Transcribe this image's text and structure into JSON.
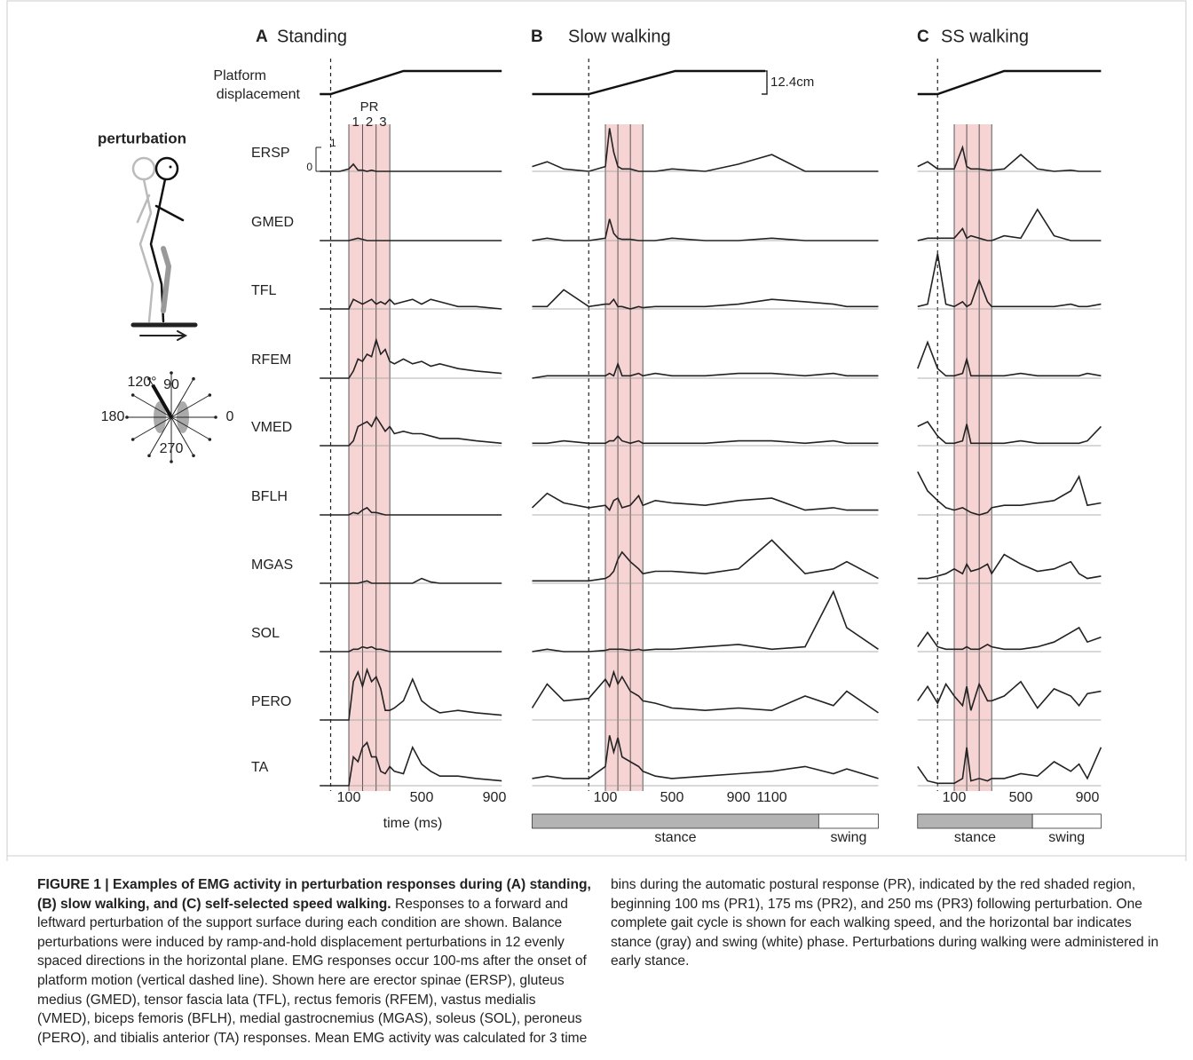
{
  "figure": {
    "muscles": [
      "ERSP",
      "GMED",
      "TFL",
      "RFEM",
      "VMED",
      "BFLH",
      "MGAS",
      "SOL",
      "PERO",
      "TA"
    ],
    "platform_label": [
      "Platform",
      "displacement"
    ],
    "displacement_scale": "12.4cm",
    "emg_scale_ticks": [
      0,
      1
    ],
    "pr_label": "PR",
    "pr_bins": [
      "1",
      "2",
      "3"
    ],
    "pr_edges": [
      100,
      175,
      250,
      325
    ],
    "xlabel": "time (ms)",
    "perturbation_label": "perturbation",
    "directions": [
      {
        "value": 120,
        "label": "120°"
      },
      90,
      180,
      0,
      270
    ],
    "panels": [
      {
        "letter": "A",
        "title": "Standing",
        "time": [
          -60,
          0,
          50,
          100,
          125,
          150,
          175,
          200,
          225,
          250,
          275,
          300,
          325,
          350,
          400,
          450,
          500,
          550,
          600,
          700,
          800,
          940
        ],
        "platform_time": [
          -60,
          0,
          400,
          940
        ],
        "platform": [
          0,
          0,
          12.4,
          12.4
        ],
        "xticks": [
          100,
          500,
          900
        ],
        "emg": [
          [
            0,
            0,
            0,
            0.1,
            0.3,
            0.05,
            0.05,
            0,
            0.05,
            0,
            0,
            0,
            0,
            0,
            0,
            0,
            0,
            0,
            0,
            0,
            0,
            0
          ],
          [
            0,
            0,
            0,
            0,
            0.05,
            0.1,
            0.05,
            0,
            0,
            0,
            0,
            0,
            0,
            0,
            0,
            0,
            0,
            0,
            0,
            0,
            0,
            0
          ],
          [
            0,
            0,
            0,
            0,
            0.4,
            0.3,
            0.2,
            0.3,
            0.4,
            0.2,
            0.3,
            0.2,
            0.4,
            0.2,
            0.3,
            0.4,
            0.2,
            0.4,
            0.3,
            0.1,
            0.1,
            0
          ],
          [
            0,
            0,
            0,
            0,
            0.3,
            0.8,
            0.7,
            1.0,
            0.9,
            1.6,
            1.0,
            1.2,
            0.7,
            0.6,
            0.8,
            0.6,
            0.7,
            0.5,
            0.6,
            0.4,
            0.3,
            0.2
          ],
          [
            0,
            0,
            0,
            0,
            0.2,
            0.8,
            0.9,
            1.0,
            0.8,
            1.2,
            0.9,
            0.6,
            0.8,
            0.5,
            0.6,
            0.5,
            0.5,
            0.4,
            0.3,
            0.3,
            0.2,
            0.1
          ],
          [
            0,
            0,
            0,
            0,
            0.1,
            0.05,
            0.2,
            0.3,
            0.1,
            0.1,
            0.05,
            0,
            0,
            0,
            0,
            0,
            0,
            0,
            0,
            0,
            0,
            0
          ],
          [
            0,
            0,
            0,
            0,
            0,
            0,
            0.05,
            0.1,
            0,
            0,
            0,
            0,
            0,
            0,
            0,
            0,
            0.2,
            0.05,
            0,
            0,
            0,
            0
          ],
          [
            0,
            0,
            0,
            0,
            0.1,
            0.1,
            0.2,
            0.15,
            0.2,
            0.1,
            0.1,
            0.05,
            0,
            0,
            0,
            0,
            0,
            0,
            0,
            0,
            0,
            0
          ],
          [
            0,
            0,
            0,
            0,
            1.6,
            2.0,
            1.4,
            2.1,
            1.6,
            1.8,
            1.3,
            0.4,
            0.4,
            0.5,
            0.8,
            1.7,
            0.8,
            0.5,
            0.3,
            0.4,
            0.3,
            0.2
          ],
          [
            0,
            0,
            0,
            0,
            1.2,
            1.0,
            1.6,
            1.8,
            1.2,
            1.2,
            0.6,
            0.5,
            0.8,
            0.6,
            0.5,
            1.6,
            0.9,
            0.6,
            0.4,
            0.4,
            0.3,
            0.2
          ]
        ]
      },
      {
        "letter": "B",
        "title": "Slow walking",
        "time": [
          -340,
          -250,
          -150,
          0,
          100,
          125,
          150,
          175,
          200,
          250,
          300,
          325,
          400,
          500,
          700,
          900,
          1100,
          1300,
          1470,
          1550,
          1740
        ],
        "platform_time": [
          -340,
          0,
          520,
          1060
        ],
        "platform": [
          0,
          0,
          12.4,
          12.4
        ],
        "xticks": [
          100,
          500,
          900,
          1100
        ],
        "gait": {
          "stance_end": 1382,
          "labels": [
            "stance",
            "swing"
          ]
        },
        "emg": [
          [
            0.2,
            0.4,
            0.1,
            0,
            0.2,
            1.8,
            0.8,
            0.2,
            0.1,
            0.1,
            0,
            0,
            0,
            0.1,
            0,
            0.3,
            0.7,
            0,
            0,
            0,
            0
          ],
          [
            0,
            0.1,
            0,
            0,
            0.1,
            0.9,
            0.3,
            0.1,
            0.05,
            0.05,
            0,
            0,
            0,
            0.1,
            0,
            0,
            0.1,
            0,
            0,
            0,
            0
          ],
          [
            0.1,
            0.1,
            0.8,
            0.1,
            0.2,
            0.2,
            0.4,
            0.1,
            0.1,
            0,
            0.1,
            0.05,
            0.1,
            0.1,
            0.1,
            0.2,
            0.4,
            0.3,
            0.2,
            0.1,
            0.1
          ],
          [
            0,
            0.1,
            0.1,
            0.1,
            0.1,
            0.2,
            0.1,
            0.6,
            0.1,
            0.1,
            0.2,
            0.1,
            0.2,
            0.1,
            0.1,
            0.2,
            0.2,
            0.1,
            0.2,
            0.1,
            0.1
          ],
          [
            0.1,
            0.1,
            0.2,
            0.1,
            0.1,
            0.2,
            0.2,
            0.4,
            0.2,
            0.1,
            0.2,
            0.1,
            0.1,
            0.1,
            0.1,
            0.2,
            0.2,
            0.1,
            0.2,
            0.1,
            0.1
          ],
          [
            0.3,
            0.9,
            0.5,
            0.3,
            0.4,
            0.2,
            0.6,
            0.7,
            0.3,
            0.4,
            0.8,
            0.4,
            0.6,
            0.5,
            0.4,
            0.6,
            0.7,
            0.2,
            0.3,
            0.2,
            0.2
          ],
          [
            0.1,
            0.1,
            0.1,
            0.1,
            0.2,
            0.3,
            0.5,
            1.0,
            1.3,
            0.9,
            0.6,
            0.4,
            0.5,
            0.5,
            0.4,
            0.6,
            1.8,
            0.4,
            0.6,
            0.9,
            0.2
          ],
          [
            0,
            0.1,
            0,
            0,
            0.05,
            0.1,
            0.1,
            0.1,
            0.1,
            0.05,
            0.1,
            0.05,
            0.1,
            0.1,
            0.2,
            0.3,
            0.1,
            0.2,
            2.5,
            1.0,
            0.1
          ],
          [
            0.5,
            1.5,
            0.8,
            0.9,
            1.7,
            1.4,
            2.0,
            1.5,
            1.8,
            1.2,
            1.0,
            0.8,
            0.7,
            0.5,
            0.4,
            0.5,
            0.4,
            1.0,
            0.6,
            1.2,
            0.3
          ],
          [
            0.3,
            0.4,
            0.3,
            0.3,
            0.8,
            2.1,
            1.4,
            2.0,
            1.2,
            1.0,
            0.8,
            0.6,
            0.4,
            0.3,
            0.4,
            0.5,
            0.6,
            0.8,
            0.5,
            0.7,
            0.3
          ]
        ]
      },
      {
        "letter": "C",
        "title": "SS walking",
        "time": [
          -120,
          -60,
          0,
          50,
          100,
          150,
          175,
          200,
          250,
          300,
          325,
          400,
          500,
          600,
          700,
          800,
          850,
          900,
          982
        ],
        "platform_time": [
          -120,
          0,
          400,
          982
        ],
        "platform": [
          0,
          0,
          12.4,
          12.4
        ],
        "xticks": [
          100,
          500,
          900
        ],
        "gait": {
          "stance_end": 570,
          "labels": [
            "stance",
            "swing"
          ]
        },
        "emg": [
          [
            0.2,
            0.4,
            0.1,
            0.1,
            0.1,
            1.0,
            0.2,
            0.1,
            0.1,
            0.05,
            0.05,
            0.1,
            0.7,
            0.1,
            0,
            0.05,
            0,
            0,
            0
          ],
          [
            0,
            0.1,
            0.1,
            0.1,
            0.1,
            0.5,
            0.1,
            0.2,
            0.1,
            0,
            0,
            0.2,
            0.1,
            1.3,
            0.2,
            0,
            0,
            0,
            0
          ],
          [
            0.1,
            0.2,
            2.3,
            0.2,
            0.1,
            0.3,
            0.1,
            0.2,
            1.2,
            0.3,
            0.1,
            0.1,
            0.1,
            0.1,
            0.1,
            0.2,
            0.1,
            0.1,
            0.2
          ],
          [
            0.4,
            1.5,
            0.4,
            0.1,
            0.1,
            0.2,
            0.8,
            0.1,
            0.1,
            0.1,
            0.1,
            0.1,
            0.2,
            0.1,
            0.1,
            0.1,
            0.1,
            0.2,
            0.1
          ],
          [
            0.8,
            1.0,
            0.4,
            0.1,
            0.1,
            0.2,
            0.9,
            0.1,
            0.1,
            0.1,
            0.1,
            0.1,
            0.2,
            0.1,
            0.1,
            0.1,
            0.1,
            0.2,
            0.8
          ],
          [
            1.8,
            1.0,
            0.6,
            0.3,
            0.2,
            0.3,
            0.2,
            0.1,
            0,
            0.1,
            0.3,
            0.4,
            0.4,
            0.5,
            0.6,
            1.0,
            1.6,
            0.4,
            0.5
          ],
          [
            0.2,
            0.2,
            0.3,
            0.4,
            0.6,
            0.4,
            0.8,
            0.5,
            0.6,
            0.8,
            0.4,
            1.2,
            0.8,
            0.5,
            0.6,
            0.9,
            0.4,
            0.2,
            0.3
          ],
          [
            0.2,
            0.8,
            0.2,
            0.1,
            0.1,
            0.1,
            0.2,
            0.1,
            0.1,
            0.3,
            0.2,
            0.1,
            0.1,
            0.2,
            0.4,
            0.8,
            1.0,
            0.4,
            0.6
          ],
          [
            0.8,
            1.4,
            0.7,
            1.5,
            1.0,
            0.6,
            1.4,
            0.4,
            1.5,
            0.8,
            0.8,
            1.0,
            1.6,
            0.5,
            1.3,
            1.0,
            0.6,
            1.1,
            1.2
          ],
          [
            0.8,
            0.2,
            0.1,
            0.1,
            0.1,
            0.3,
            1.6,
            0.2,
            0.3,
            0.2,
            0.3,
            0.3,
            0.5,
            0.4,
            1.0,
            0.6,
            0.9,
            0.3,
            1.6
          ]
        ]
      }
    ]
  },
  "caption": {
    "title": "FIGURE 1 | Examples of EMG activity in perturbation responses during (A) standing, (B) slow walking, and (C) self-selected speed walking.",
    "text": "Responses to a forward and leftward perturbation of the support surface during each condition are shown. Balance perturbations were induced by ramp-and-hold displacement perturbations in 12 evenly spaced directions in the horizontal plane. EMG responses occur 100-ms after the onset of platform motion (vertical dashed line). Shown here are erector spinae (ERSP), gluteus medius (GMED), tensor fascia lata (TFL), rectus femoris (RFEM), vastus medialis (VMED), biceps femoris (BFLH), medial gastrocnemius (MGAS), soleus (SOL), peroneus (PERO), and tibialis anterior (TA) responses. Mean EMG activity was calculated for 3 time bins during the automatic postural response (PR), indicated by the red shaded region, beginning 100 ms (PR1), 175 ms (PR2), and 250 ms (PR3) following perturbation. One complete gait cycle is shown for each walking speed, and the horizontal bar indicates stance (gray) and swing (white) phase. Perturbations during walking were administered in early stance."
  }
}
